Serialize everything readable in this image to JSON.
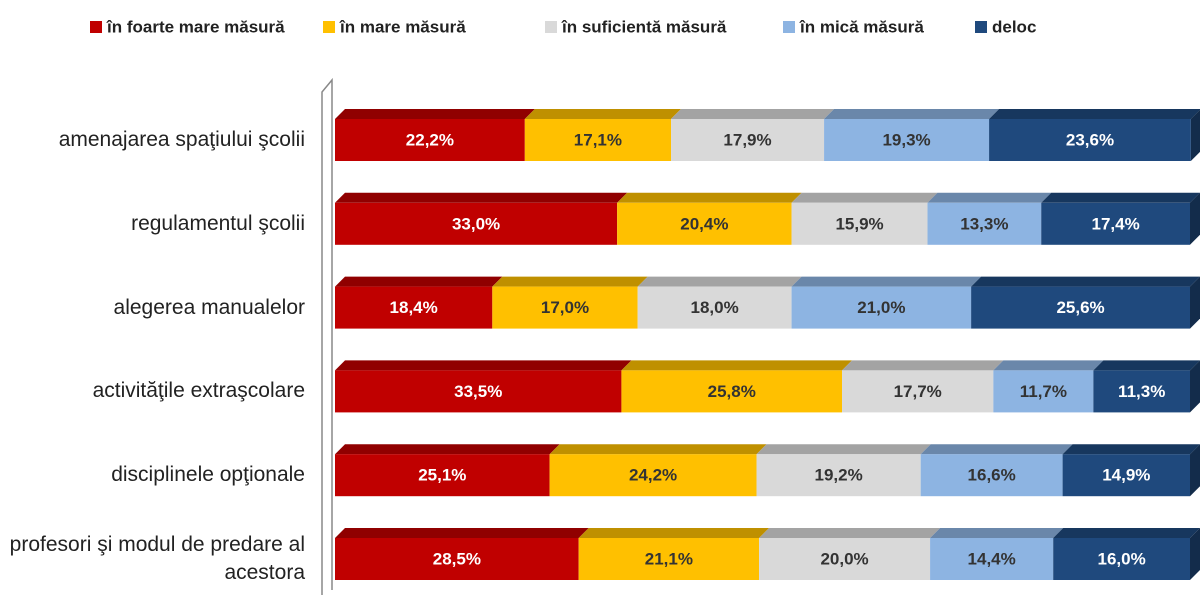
{
  "chart_data": {
    "type": "stacked_barh",
    "categories": [
      "amenajarea spaţiului şcolii",
      "regulamentul şcolii",
      "alegerea manualelor",
      "activităţile extraşcolare",
      "disciplinele opţionale",
      "profesori şi modul de predare al acestora"
    ],
    "xlim": [
      0,
      100
    ],
    "legend": "top",
    "series": [
      {
        "name": "în foarte mare măsură",
        "color": "#c00000",
        "values": [
          22.2,
          33.0,
          18.4,
          33.5,
          25.1,
          28.5
        ],
        "value_labels": [
          "22,2%",
          "33,0%",
          "18,4%",
          "33,5%",
          "25,1%",
          "28,5%"
        ]
      },
      {
        "name": "în mare măsură",
        "color": "#ffc000",
        "values": [
          17.1,
          20.4,
          17.0,
          25.8,
          24.2,
          21.1
        ],
        "value_labels": [
          "17,1%",
          "20,4%",
          "17,0%",
          "25,8%",
          "24,2%",
          "21,1%"
        ]
      },
      {
        "name": "în suficientă măsură",
        "color": "#d9d9d9",
        "values": [
          17.9,
          15.9,
          18.0,
          17.7,
          19.2,
          20.0
        ],
        "value_labels": [
          "17,9%",
          "15,9%",
          "18,0%",
          "17,7%",
          "19,2%",
          "20,0%"
        ]
      },
      {
        "name": "în mică măsură",
        "color": "#8db4e2",
        "values": [
          19.3,
          13.3,
          21.0,
          11.7,
          16.6,
          14.4
        ],
        "value_labels": [
          "19,3%",
          "13,3%",
          "21,0%",
          "11,7%",
          "16,6%",
          "14,4%"
        ]
      },
      {
        "name": "deloc",
        "color": "#1f497d",
        "values": [
          23.6,
          17.4,
          25.6,
          11.3,
          14.9,
          16.0
        ],
        "value_labels": [
          "23,6%",
          "17,4%",
          "25,6%",
          "11,3%",
          "14,9%",
          "16,0%"
        ]
      }
    ]
  }
}
